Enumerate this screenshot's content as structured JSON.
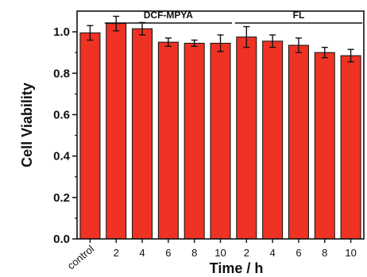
{
  "chart_data": {
    "type": "bar",
    "xlabel": "Time / h",
    "ylabel": "Cell Viability",
    "ylim": [
      0.0,
      1.1
    ],
    "yticks": [
      "0.0",
      "0.2",
      "0.4",
      "0.6",
      "0.8",
      "1.0"
    ],
    "categories": [
      "control",
      "2",
      "4",
      "6",
      "8",
      "10",
      "2",
      "4",
      "6",
      "8",
      "10"
    ],
    "values": [
      0.995,
      1.04,
      1.015,
      0.95,
      0.945,
      0.945,
      0.975,
      0.955,
      0.935,
      0.9,
      0.885
    ],
    "errors": [
      0.035,
      0.035,
      0.03,
      0.02,
      0.015,
      0.04,
      0.05,
      0.03,
      0.035,
      0.025,
      0.03
    ],
    "groups": [
      {
        "label": "DCF-MPYA",
        "start": 1,
        "end": 5
      },
      {
        "label": "FL",
        "start": 6,
        "end": 10
      }
    ],
    "colors": {
      "bar": "#ee3224",
      "bar_edge": "#111111",
      "axis": "#111111"
    }
  }
}
